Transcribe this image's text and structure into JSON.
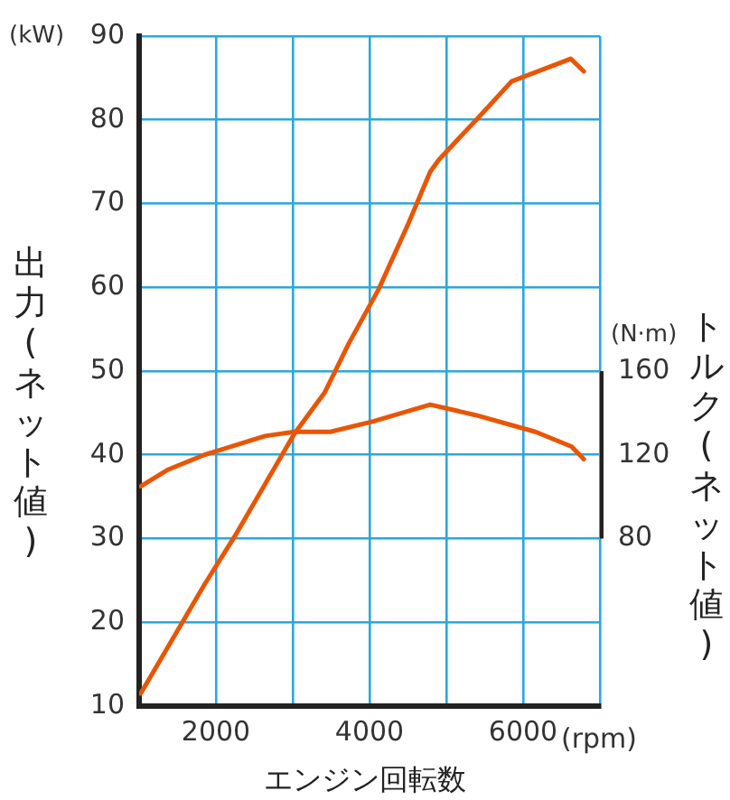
{
  "chart_data": {
    "type": "line",
    "xlabel": "エンジン回転数",
    "ylabel": "出力(ネット値)",
    "y2label": "トルク(ネット値)",
    "xlim": [
      1000,
      7000
    ],
    "xticks": [
      {
        "value": 1000,
        "label": null
      },
      2000,
      {
        "value": 3000,
        "label": null
      },
      4000,
      {
        "value": 5000,
        "label": null
      },
      6000,
      {
        "value": 7000,
        "label": null
      }
    ],
    "ylim": [
      10,
      90
    ],
    "yticks": [
      10,
      20,
      30,
      40,
      50,
      60,
      70,
      80,
      90
    ],
    "y2lim": [
      0,
      320
    ],
    "y2ticks": [
      80,
      120,
      160
    ],
    "grid": true,
    "legend": false,
    "marker": "none",
    "line_style": "solid",
    "annotations": [
      "(kW)",
      "(N·m)",
      "(rpm)"
    ],
    "series": [
      {
        "color": "#ea5504",
        "x": [
          1020,
          1850,
          2240,
          3020,
          3420,
          3730,
          4120,
          4510,
          4790,
          4900,
          5450,
          5850,
          6620,
          6790
        ],
        "values": [
          11.5,
          24.5,
          30.2,
          42.5,
          47.5,
          53.3,
          59.8,
          67.7,
          73.8,
          75.2,
          80.6,
          84.6,
          87.3,
          85.8
        ]
      },
      {
        "color": "#ea5504",
        "axis": "y2",
        "x": [
          1020,
          1380,
          1850,
          2640,
          3020,
          3490,
          4050,
          4790,
          5380,
          6160,
          6630,
          6790
        ],
        "values": [
          105,
          113,
          120,
          129,
          131,
          131,
          136,
          144,
          139,
          131,
          124,
          118
        ]
      }
    ]
  }
}
